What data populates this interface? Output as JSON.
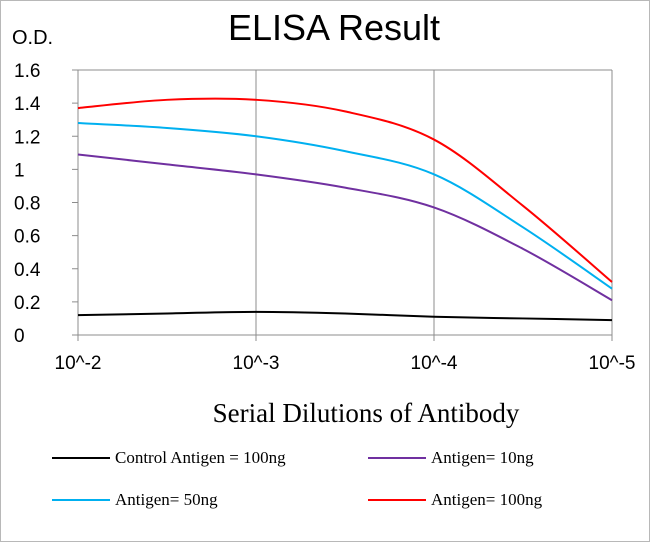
{
  "chart_data": {
    "type": "line",
    "title": "ELISA Result",
    "ylabel": "O.D.",
    "xlabel": "Serial Dilutions of Antibody",
    "x_ticks": [
      "10^-2",
      "10^-3",
      "10^-4",
      "10^-5"
    ],
    "y_ticks": [
      "0",
      "0.2",
      "0.4",
      "0.6",
      "0.8",
      "1",
      "1.2",
      "1.4",
      "1.6"
    ],
    "ylim": [
      0,
      1.6
    ],
    "grid": "vertical",
    "legend_position": "bottom",
    "series": [
      {
        "name": "Control Antigen = 100ng",
        "color": "#000000",
        "x": [
          0,
          0.5,
          1,
          1.5,
          2,
          2.5,
          3
        ],
        "values": [
          0.12,
          0.13,
          0.14,
          0.13,
          0.11,
          0.1,
          0.09
        ]
      },
      {
        "name": "Antigen= 10ng",
        "color": "#7030a0",
        "x": [
          0,
          0.5,
          1,
          1.5,
          2,
          2.5,
          3
        ],
        "values": [
          1.09,
          1.03,
          0.97,
          0.89,
          0.77,
          0.52,
          0.21
        ]
      },
      {
        "name": "Antigen= 50ng",
        "color": "#00b0f0",
        "x": [
          0,
          0.5,
          1,
          1.5,
          2,
          2.5,
          3
        ],
        "values": [
          1.28,
          1.25,
          1.2,
          1.11,
          0.97,
          0.65,
          0.28
        ]
      },
      {
        "name": "Antigen= 100ng",
        "color": "#ff0000",
        "x": [
          0,
          0.5,
          1,
          1.5,
          2,
          2.5,
          3
        ],
        "values": [
          1.37,
          1.42,
          1.42,
          1.35,
          1.18,
          0.78,
          0.32
        ]
      }
    ]
  }
}
